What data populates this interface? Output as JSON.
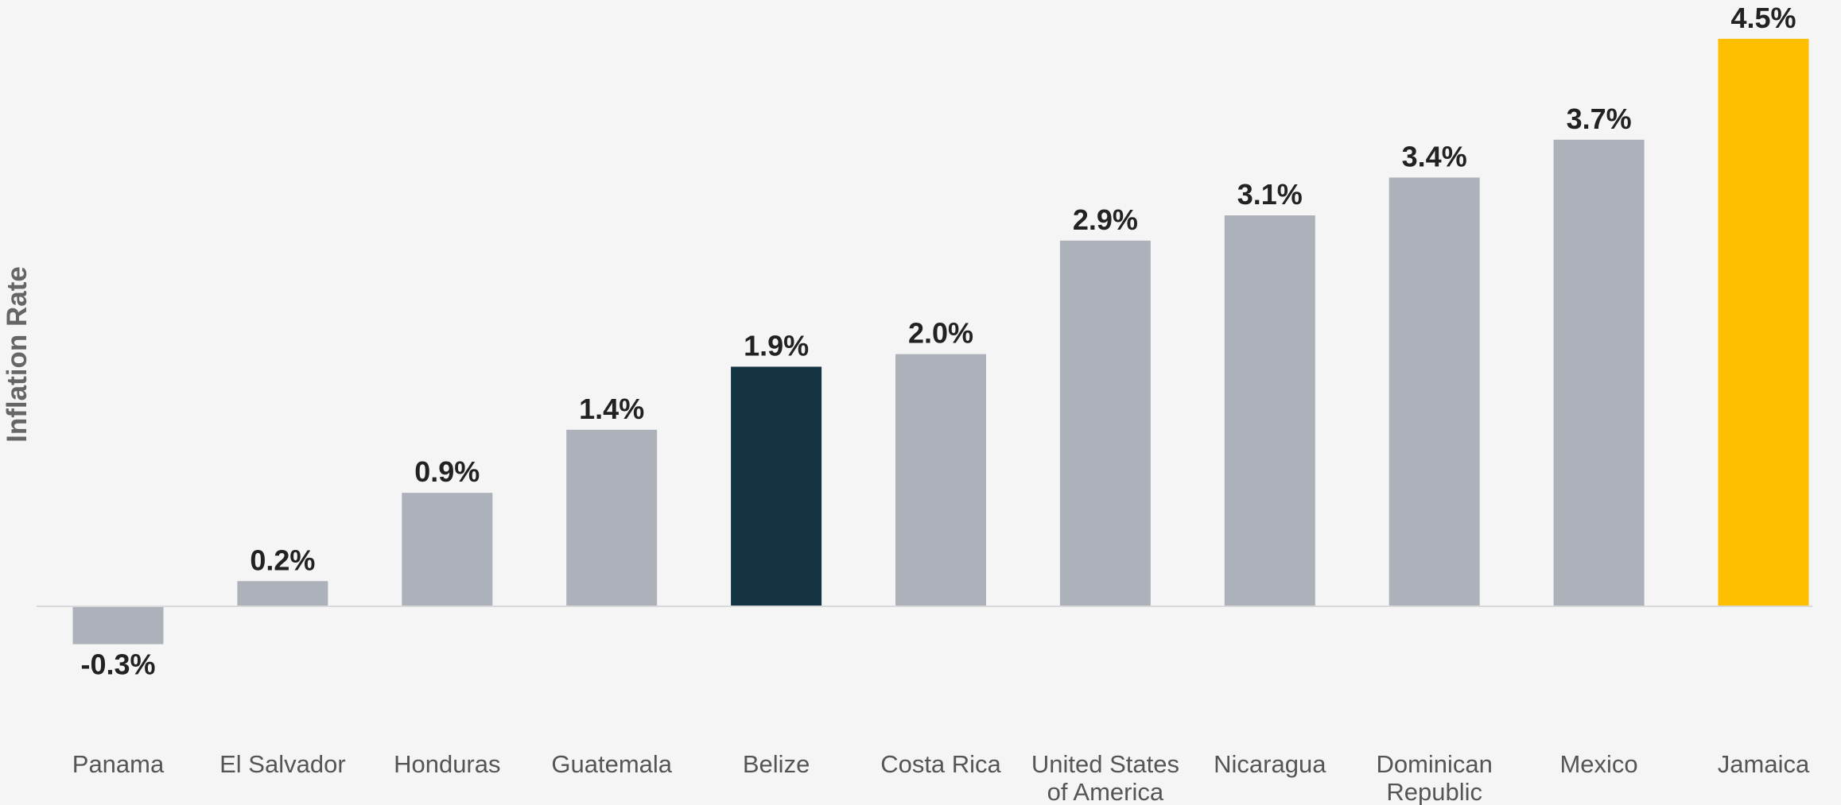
{
  "chart_data": {
    "type": "bar",
    "title": "",
    "xlabel": "",
    "ylabel": "Inflation Rate",
    "unit": "%",
    "categories": [
      "Panama",
      "El Salvador",
      "Honduras",
      "Guatemala",
      "Belize",
      "Costa Rica",
      "United States of America",
      "Nicaragua",
      "Dominican Republic",
      "Mexico",
      "Jamaica"
    ],
    "category_lines": [
      [
        "Panama"
      ],
      [
        "El Salvador"
      ],
      [
        "Honduras"
      ],
      [
        "Guatemala"
      ],
      [
        "Belize"
      ],
      [
        "Costa Rica"
      ],
      [
        "United States",
        "of America"
      ],
      [
        "Nicaragua"
      ],
      [
        "Dominican",
        "Republic"
      ],
      [
        "Mexico"
      ],
      [
        "Jamaica"
      ]
    ],
    "values": [
      -0.3,
      0.2,
      0.9,
      1.4,
      1.9,
      2.0,
      2.9,
      3.1,
      3.4,
      3.7,
      4.5
    ],
    "value_labels": [
      "-0.3%",
      "0.2%",
      "0.9%",
      "1.4%",
      "1.9%",
      "2.0%",
      "2.9%",
      "3.1%",
      "3.4%",
      "3.7%",
      "4.5%"
    ],
    "bar_colors": [
      "#adb1ba",
      "#adb1ba",
      "#adb1ba",
      "#adb1ba",
      "#143444",
      "#adb1ba",
      "#adb1ba",
      "#adb1ba",
      "#adb1ba",
      "#adb1ba",
      "#fdbf00"
    ],
    "ylim": [
      -0.3,
      4.5
    ],
    "grid": false,
    "legend": "none",
    "colors": {
      "default_bar": "#adb1ba",
      "highlight_bar": "#143444",
      "max_bar": "#fdbf00",
      "baseline": "#d9d9d9",
      "background": "#f5f5f5"
    }
  }
}
